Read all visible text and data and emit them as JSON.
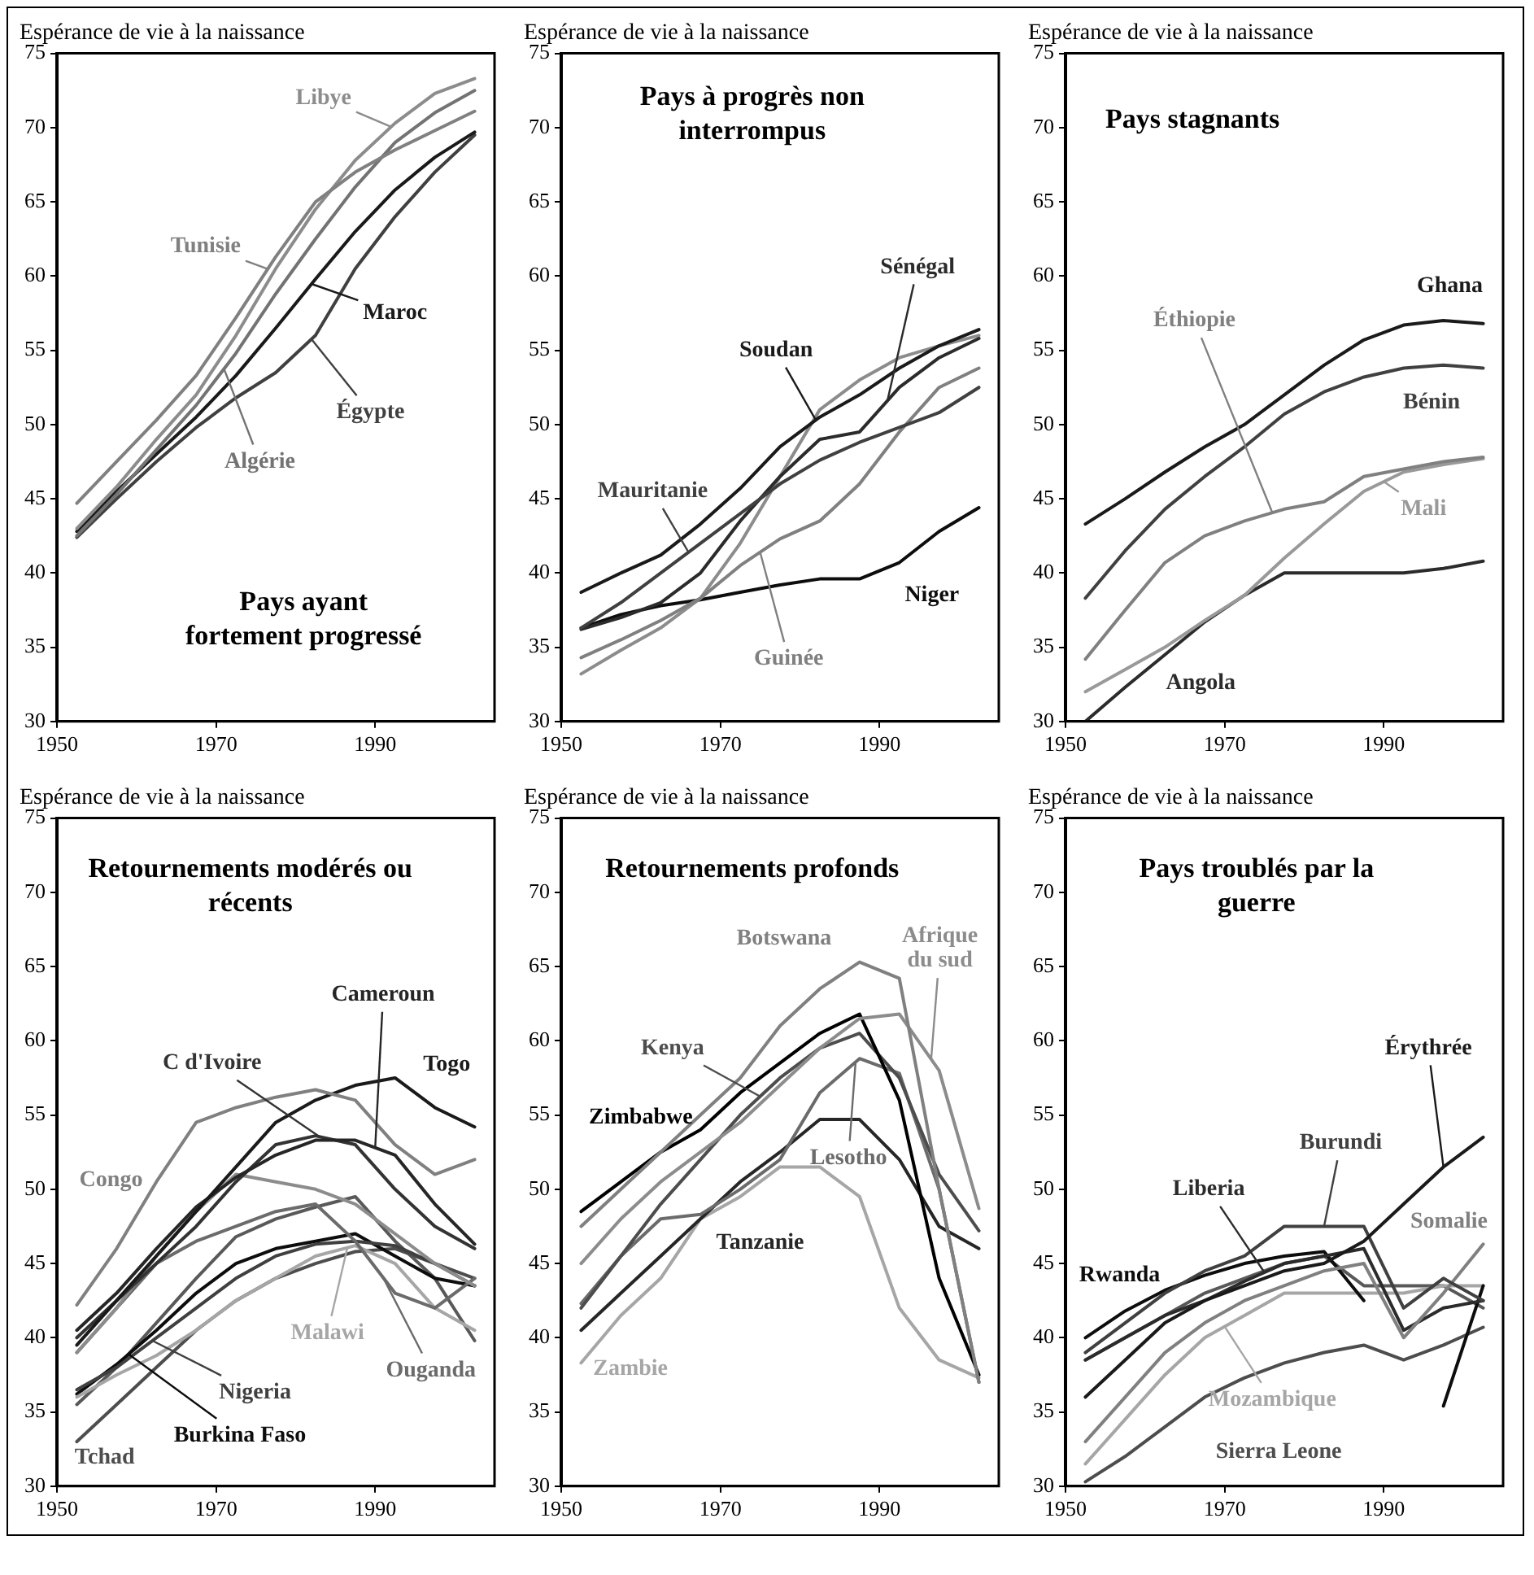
{
  "chart_data": [
    {
      "type": "line",
      "title": "Pays ayant fortement progressé",
      "ylabel": "Espérance de vie à la naissance",
      "x": [
        1952.5,
        1957.5,
        1962.5,
        1967.5,
        1972.5,
        1977.5,
        1982.5,
        1987.5,
        1992.5,
        1997.5,
        2002.5
      ],
      "xlim": [
        1950,
        2005
      ],
      "xticks": [
        1950,
        1970,
        1990
      ],
      "ylim": [
        30,
        75
      ],
      "yticks": [
        30,
        35,
        40,
        45,
        50,
        55,
        60,
        65,
        70,
        75
      ],
      "series": [
        {
          "name": "Tunisie",
          "color": "#808080",
          "values": [
            44.7,
            47.5,
            50.3,
            53.3,
            57.2,
            61.3,
            65.0,
            67.0,
            68.5,
            69.8,
            71.1
          ]
        },
        {
          "name": "Libye",
          "color": "#8c8c8c",
          "values": [
            43.0,
            45.8,
            49.0,
            52.0,
            56.0,
            60.5,
            64.5,
            67.8,
            70.3,
            72.3,
            73.3
          ]
        },
        {
          "name": "Algérie",
          "color": "#737373",
          "values": [
            42.5,
            45.3,
            48.3,
            51.3,
            54.8,
            58.8,
            62.5,
            66.0,
            69.0,
            71.0,
            72.5
          ]
        },
        {
          "name": "Maroc",
          "color": "#1a1a1a",
          "values": [
            42.8,
            45.5,
            48.0,
            50.5,
            53.3,
            56.5,
            59.8,
            63.0,
            65.8,
            68.0,
            69.7
          ]
        },
        {
          "name": "Égypte",
          "color": "#404040",
          "values": [
            42.4,
            45.0,
            47.5,
            49.8,
            51.8,
            53.5,
            56.0,
            60.5,
            64.0,
            67.0,
            69.5
          ]
        }
      ]
    },
    {
      "type": "line",
      "title": "Pays à progrès non interrompus",
      "ylabel": "Espérance de vie à la naissance",
      "x": [
        1952.5,
        1957.5,
        1962.5,
        1967.5,
        1972.5,
        1977.5,
        1982.5,
        1987.5,
        1992.5,
        1997.5,
        2002.5
      ],
      "xlim": [
        1950,
        2005
      ],
      "xticks": [
        1950,
        1970,
        1990
      ],
      "ylim": [
        30,
        75
      ],
      "yticks": [
        30,
        35,
        40,
        45,
        50,
        55,
        60,
        65,
        70,
        75
      ],
      "series": [
        {
          "name": "Soudan",
          "color": "#1a1a1a",
          "values": [
            38.7,
            40.0,
            41.2,
            43.3,
            45.7,
            48.5,
            50.5,
            52.0,
            53.8,
            55.3,
            56.4
          ]
        },
        {
          "name": "Mauritanie",
          "color": "#404040",
          "values": [
            36.3,
            38.0,
            40.0,
            42.0,
            44.0,
            46.0,
            47.6,
            48.8,
            49.8,
            50.8,
            52.5
          ]
        },
        {
          "name": "Sénégal",
          "color": "#2b2b2b",
          "values": [
            36.2,
            37.0,
            38.0,
            40.0,
            43.5,
            46.5,
            49.0,
            49.5,
            52.5,
            54.5,
            55.8
          ]
        },
        {
          "name": "Guinée",
          "color": "#808080",
          "values": [
            34.3,
            35.5,
            36.8,
            38.3,
            40.5,
            42.3,
            43.5,
            46.0,
            49.5,
            52.5,
            53.8
          ]
        },
        {
          "color": "#8c8c8c",
          "values": [
            33.2,
            34.8,
            36.3,
            38.3,
            42.0,
            46.5,
            51.0,
            53.0,
            54.5,
            55.3,
            56.0
          ]
        },
        {
          "name": "Niger",
          "color": "#0d0d0d",
          "values": [
            36.3,
            37.2,
            37.8,
            38.2,
            38.7,
            39.2,
            39.6,
            39.6,
            40.7,
            42.8,
            44.4
          ]
        }
      ]
    },
    {
      "type": "line",
      "title": "Pays stagnants",
      "ylabel": "Espérance de vie à la naissance",
      "x": [
        1952.5,
        1957.5,
        1962.5,
        1967.5,
        1972.5,
        1977.5,
        1982.5,
        1987.5,
        1992.5,
        1997.5,
        2002.5
      ],
      "xlim": [
        1950,
        2005
      ],
      "xticks": [
        1950,
        1970,
        1990
      ],
      "ylim": [
        30,
        75
      ],
      "yticks": [
        30,
        35,
        40,
        45,
        50,
        55,
        60,
        65,
        70,
        75
      ],
      "series": [
        {
          "name": "Ghana",
          "color": "#1a1a1a",
          "values": [
            43.3,
            45.0,
            46.8,
            48.5,
            50.0,
            52.0,
            54.0,
            55.7,
            56.7,
            57.0,
            56.8
          ]
        },
        {
          "name": "Bénin",
          "color": "#404040",
          "values": [
            38.3,
            41.5,
            44.3,
            46.5,
            48.5,
            50.7,
            52.2,
            53.2,
            53.8,
            54.0,
            53.8
          ]
        },
        {
          "name": "Éthiopie",
          "color": "#808080",
          "values": [
            34.2,
            37.5,
            40.7,
            42.5,
            43.5,
            44.3,
            44.8,
            46.5,
            47.0,
            47.5,
            47.8
          ]
        },
        {
          "name": "Mali",
          "color": "#999999",
          "values": [
            32.0,
            33.5,
            35.0,
            36.8,
            38.5,
            41.0,
            43.3,
            45.5,
            46.8,
            47.3,
            47.7
          ]
        },
        {
          "name": "Angola",
          "color": "#2b2b2b",
          "values": [
            30.0,
            32.3,
            34.5,
            36.7,
            38.5,
            40.0,
            40.0,
            40.0,
            40.0,
            40.3,
            40.8
          ]
        }
      ]
    },
    {
      "type": "line",
      "title": "Retournements modérés ou récents",
      "ylabel": "Espérance de vie à la naissance",
      "x": [
        1952.5,
        1957.5,
        1962.5,
        1967.5,
        1972.5,
        1977.5,
        1982.5,
        1987.5,
        1992.5,
        1997.5,
        2002.5
      ],
      "xlim": [
        1950,
        2005
      ],
      "xticks": [
        1950,
        1970,
        1990
      ],
      "ylim": [
        30,
        75
      ],
      "yticks": [
        30,
        35,
        40,
        45,
        50,
        55,
        60,
        65,
        70,
        75
      ],
      "series": [
        {
          "name": "Congo",
          "color": "#808080",
          "values": [
            42.2,
            46.0,
            50.5,
            54.5,
            55.5,
            56.2,
            56.7,
            56.0,
            53.0,
            51.0,
            52.0
          ]
        },
        {
          "name": "Togo",
          "color": "#1a1a1a",
          "values": [
            39.5,
            42.5,
            45.5,
            48.5,
            51.5,
            54.5,
            56.0,
            57.0,
            57.5,
            55.5,
            54.2
          ]
        },
        {
          "name": "Cameroun",
          "color": "#262626",
          "values": [
            40.5,
            43.0,
            46.0,
            48.8,
            50.8,
            52.3,
            53.3,
            53.3,
            52.3,
            49.0,
            46.3
          ]
        },
        {
          "name": "C d'Ivoire",
          "color": "#333333",
          "values": [
            40.0,
            42.5,
            45.0,
            47.5,
            50.5,
            53.0,
            53.6,
            53.0,
            50.0,
            47.5,
            46.0
          ]
        },
        {
          "color": "#8c8c8c",
          "values": [
            39.0,
            42.0,
            45.5,
            48.5,
            51.0,
            50.5,
            50.0,
            49.0,
            47.0,
            45.0,
            43.5
          ]
        },
        {
          "name": "Ouganda",
          "color": "#6b6b6b",
          "values": [
            39.0,
            42.0,
            45.0,
            46.5,
            47.5,
            48.5,
            49.0,
            46.5,
            43.0,
            42.0,
            44.0
          ]
        },
        {
          "name": "Malawi",
          "color": "#a6a6a6",
          "values": [
            36.0,
            37.5,
            38.8,
            40.5,
            42.5,
            44.0,
            45.5,
            46.2,
            45.0,
            42.0,
            40.5
          ]
        },
        {
          "name": "Nigeria",
          "color": "#404040",
          "values": [
            36.5,
            38.0,
            40.0,
            42.0,
            44.0,
            45.5,
            46.3,
            46.5,
            46.2,
            45.0,
            43.5
          ]
        },
        {
          "name": "Burkina Faso",
          "color": "#0d0d0d",
          "values": [
            36.2,
            38.2,
            40.5,
            43.0,
            45.0,
            46.0,
            46.5,
            47.0,
            45.5,
            44.0,
            43.5
          ]
        },
        {
          "name": "Tchad",
          "color": "#4d4d4d",
          "values": [
            33.0,
            35.5,
            38.0,
            40.5,
            42.5,
            44.0,
            45.0,
            45.8,
            46.0,
            45.0,
            44.0
          ]
        },
        {
          "color": "#595959",
          "values": [
            35.5,
            38.0,
            41.0,
            44.0,
            46.8,
            48.0,
            48.8,
            49.5,
            46.5,
            44.0,
            39.8
          ]
        }
      ]
    },
    {
      "type": "line",
      "title": "Retournements profonds",
      "ylabel": "Espérance de vie à la naissance",
      "x": [
        1952.5,
        1957.5,
        1962.5,
        1967.5,
        1972.5,
        1977.5,
        1982.5,
        1987.5,
        1992.5,
        1997.5,
        2002.5
      ],
      "xlim": [
        1950,
        2005
      ],
      "xticks": [
        1950,
        1970,
        1990
      ],
      "ylim": [
        30,
        75
      ],
      "yticks": [
        30,
        35,
        40,
        45,
        50,
        55,
        60,
        65,
        70,
        75
      ],
      "series": [
        {
          "name": "Botswana",
          "color": "#808080",
          "values": [
            47.5,
            50.0,
            52.5,
            55.0,
            57.5,
            61.0,
            63.5,
            65.3,
            64.2,
            50.0,
            37.0
          ]
        },
        {
          "name": "Afrique du sud",
          "color": "#8c8c8c",
          "values": [
            45.0,
            48.0,
            50.5,
            52.5,
            54.5,
            57.0,
            59.5,
            61.5,
            61.8,
            58.0,
            48.7
          ]
        },
        {
          "name": "Zimbabwe",
          "color": "#000000",
          "values": [
            48.5,
            50.5,
            52.5,
            54.0,
            56.5,
            58.5,
            60.5,
            61.8,
            56.0,
            44.0,
            37.5
          ]
        },
        {
          "name": "Kenya",
          "color": "#4d4d4d",
          "values": [
            42.0,
            45.5,
            49.0,
            52.0,
            55.0,
            57.5,
            59.5,
            60.5,
            57.5,
            51.0,
            47.2
          ]
        },
        {
          "name": "Lesotho",
          "color": "#6b6b6b",
          "values": [
            42.3,
            45.5,
            48.0,
            48.3,
            50.0,
            52.0,
            56.5,
            58.8,
            57.8,
            50.0,
            37.0
          ]
        },
        {
          "name": "Tanzanie",
          "color": "#262626",
          "values": [
            40.5,
            43.0,
            45.5,
            48.0,
            50.5,
            52.5,
            54.7,
            54.7,
            52.0,
            47.5,
            46.0
          ]
        },
        {
          "name": "Zambie",
          "color": "#a6a6a6",
          "values": [
            38.3,
            41.5,
            44.0,
            48.0,
            49.5,
            51.5,
            51.5,
            49.5,
            42.0,
            38.5,
            37.3
          ]
        }
      ]
    },
    {
      "type": "line",
      "title": "Pays troublés par la guerre",
      "ylabel": "Espérance de vie à la naissance",
      "x": [
        1952.5,
        1957.5,
        1962.5,
        1967.5,
        1972.5,
        1977.5,
        1982.5,
        1987.5,
        1992.5,
        1997.5,
        2002.5
      ],
      "xlim": [
        1950,
        2005
      ],
      "xticks": [
        1950,
        1970,
        1990
      ],
      "ylim": [
        30,
        75
      ],
      "yticks": [
        30,
        35,
        40,
        45,
        50,
        55,
        60,
        65,
        70,
        75
      ],
      "series": [
        {
          "name": "Érythrée",
          "color": "#1a1a1a",
          "values": [
            36.0,
            38.5,
            41.0,
            42.5,
            43.5,
            44.5,
            45.0,
            46.5,
            49.0,
            51.5,
            53.5
          ]
        },
        {
          "name": "Burundi",
          "color": "#404040",
          "values": [
            39.0,
            41.0,
            43.0,
            44.5,
            45.5,
            47.5,
            47.5,
            47.5,
            42.0,
            44.0,
            42.5
          ]
        },
        {
          "name": "Somalie",
          "color": "#808080",
          "values": [
            33.0,
            36.0,
            39.0,
            41.0,
            42.5,
            43.5,
            44.5,
            45.0,
            40.0,
            43.0,
            46.3
          ]
        },
        {
          "name": "Liberia",
          "color": "#2b2b2b",
          "values": [
            38.5,
            40.0,
            41.5,
            42.5,
            43.8,
            45.0,
            45.5,
            46.0,
            40.5,
            42.0,
            42.5
          ]
        },
        {
          "name": "Rwanda",
          "color": "#0d0d0d",
          "values": [
            40.0,
            41.8,
            43.2,
            44.2,
            45.0,
            45.5,
            45.8,
            42.5,
            null,
            35.4,
            43.5
          ]
        },
        {
          "name": "Mozambique",
          "color": "#a6a6a6",
          "values": [
            31.5,
            34.5,
            37.5,
            40.0,
            41.5,
            43.0,
            43.0,
            43.0,
            43.0,
            43.5,
            43.5
          ]
        },
        {
          "name": "Sierra Leone",
          "color": "#4d4d4d",
          "values": [
            30.3,
            32.0,
            34.0,
            36.0,
            37.3,
            38.3,
            39.0,
            39.5,
            38.5,
            39.5,
            40.7
          ]
        },
        {
          "color": "#595959",
          "values": [
            38.5,
            40.0,
            41.5,
            43.0,
            44.0,
            45.0,
            45.5,
            43.5,
            43.5,
            43.5,
            42.0
          ]
        }
      ]
    }
  ]
}
